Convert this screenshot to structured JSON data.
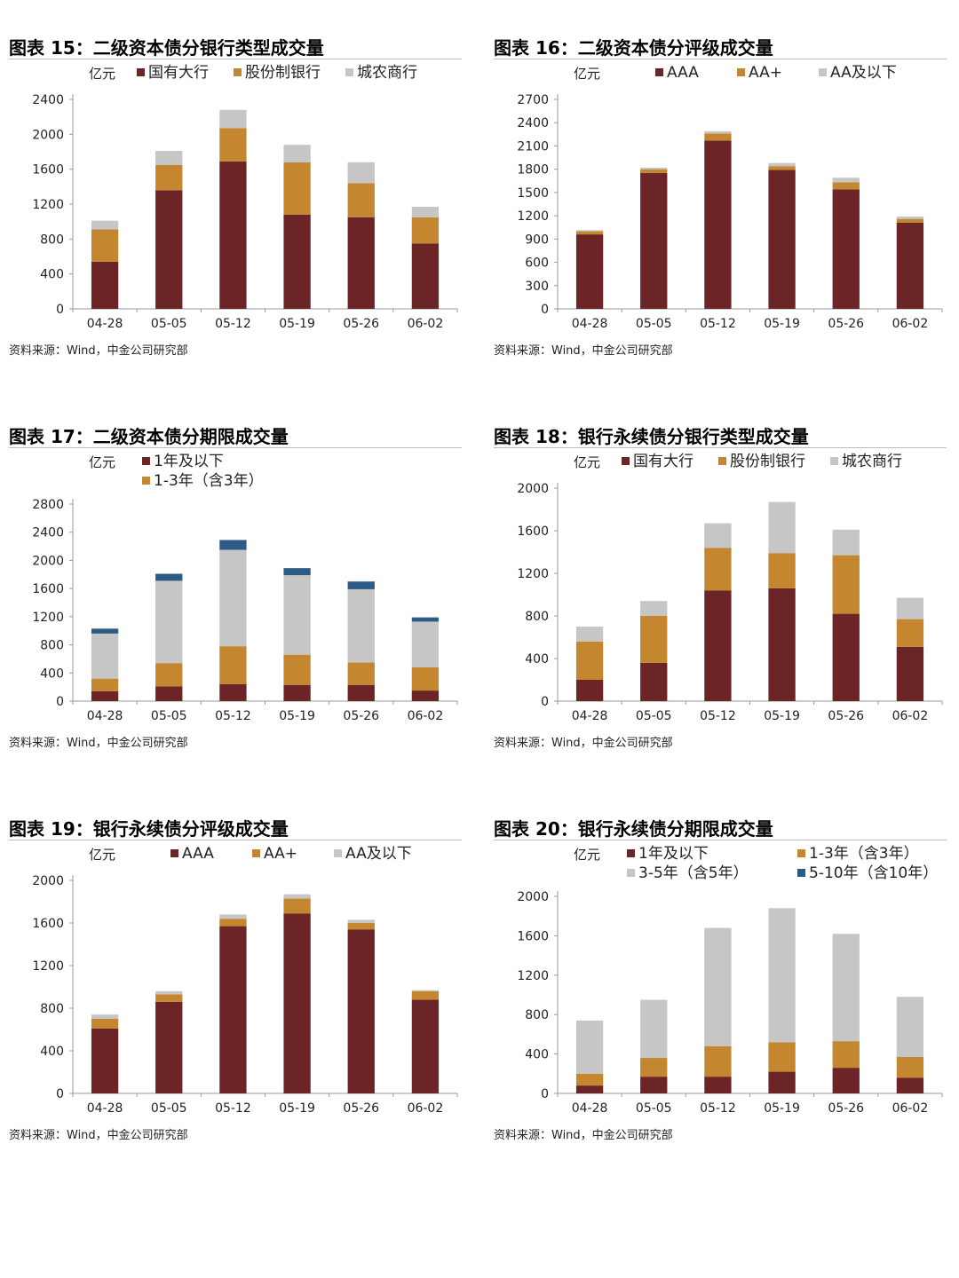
{
  "colors": {
    "dark_red": "#6b2526",
    "orange": "#c4862f",
    "gray": "#c6c6c6",
    "blue": "#2e5a86"
  },
  "source_text": "资料来源：Wind，中金公司研究部",
  "charts": [
    {
      "id": "p15",
      "title": "图表 15：二级资本债分银行类型成交量",
      "unit": "亿元",
      "legend_rows": [
        [
          "国有大行",
          "股份制银行",
          "城农商行"
        ]
      ],
      "chart_data": {
        "type": "bar",
        "stacked": true,
        "categories": [
          "04-28",
          "05-05",
          "05-12",
          "05-19",
          "05-26",
          "06-02"
        ],
        "ylim": [
          0,
          2400
        ],
        "yticks": [
          0,
          400,
          800,
          1200,
          1600,
          2000,
          2400
        ],
        "series": [
          {
            "name": "国有大行",
            "color": "#6b2526",
            "values": [
              540,
              1360,
              1690,
              1080,
              1050,
              750
            ]
          },
          {
            "name": "股份制银行",
            "color": "#c4862f",
            "values": [
              370,
              290,
              380,
              600,
              390,
              300
            ]
          },
          {
            "name": "城农商行",
            "color": "#c6c6c6",
            "values": [
              100,
              160,
              210,
              200,
              240,
              120
            ]
          }
        ]
      }
    },
    {
      "id": "p16",
      "title": "图表 16：二级资本债分评级成交量",
      "unit": "亿元",
      "legend_rows": [
        [
          "AAA",
          "AA+",
          "AA及以下"
        ]
      ],
      "chart_data": {
        "type": "bar",
        "stacked": true,
        "categories": [
          "04-28",
          "05-05",
          "05-12",
          "05-19",
          "05-26",
          "06-02"
        ],
        "ylim": [
          0,
          2700
        ],
        "yticks": [
          0,
          300,
          600,
          900,
          1200,
          1500,
          1800,
          2100,
          2400,
          2700
        ],
        "series": [
          {
            "name": "AAA",
            "color": "#6b2526",
            "values": [
              960,
              1750,
              2170,
              1790,
              1540,
              1110
            ]
          },
          {
            "name": "AA+",
            "color": "#c4862f",
            "values": [
              40,
              50,
              90,
              50,
              90,
              50
            ]
          },
          {
            "name": "AA及以下",
            "color": "#c6c6c6",
            "values": [
              15,
              20,
              30,
              40,
              60,
              30
            ]
          }
        ]
      }
    },
    {
      "id": "p17",
      "title": "图表 17：二级资本债分期限成交量",
      "unit": "亿元",
      "legend_rows": [
        [
          "1年及以下"
        ],
        [
          "1-3年（含3年）"
        ]
      ],
      "chart_data": {
        "type": "bar",
        "stacked": true,
        "categories": [
          "04-28",
          "05-05",
          "05-12",
          "05-19",
          "05-26",
          "06-02"
        ],
        "ylim": [
          0,
          2800
        ],
        "yticks": [
          0,
          400,
          800,
          1200,
          1600,
          2000,
          2400,
          2800
        ],
        "series": [
          {
            "name": "1年及以下",
            "color": "#6b2526",
            "values": [
              140,
              210,
              240,
              230,
              230,
              150
            ]
          },
          {
            "name": "1-3年（含3年）",
            "color": "#c4862f",
            "values": [
              180,
              330,
              540,
              430,
              320,
              330
            ]
          },
          {
            "color": "#c6c6c6",
            "values": [
              640,
              1170,
              1370,
              1130,
              1040,
              650
            ]
          },
          {
            "color": "#2e5a86",
            "values": [
              70,
              100,
              140,
              100,
              110,
              60
            ]
          }
        ]
      }
    },
    {
      "id": "p18",
      "title": "图表 18：银行永续债分银行类型成交量",
      "unit": "亿元",
      "legend_rows": [
        [
          "国有大行",
          "股份制银行",
          "城农商行"
        ]
      ],
      "chart_data": {
        "type": "bar",
        "stacked": true,
        "categories": [
          "04-28",
          "05-05",
          "05-12",
          "05-19",
          "05-26",
          "06-02"
        ],
        "ylim": [
          0,
          2000
        ],
        "yticks": [
          0,
          400,
          800,
          1200,
          1600,
          2000
        ],
        "series": [
          {
            "name": "国有大行",
            "color": "#6b2526",
            "values": [
              200,
              360,
              1040,
              1060,
              820,
              510
            ]
          },
          {
            "name": "股份制银行",
            "color": "#c4862f",
            "values": [
              360,
              440,
              400,
              330,
              550,
              260
            ]
          },
          {
            "name": "城农商行",
            "color": "#c6c6c6",
            "values": [
              140,
              140,
              230,
              480,
              240,
              200
            ]
          }
        ]
      }
    },
    {
      "id": "p19",
      "title": "图表 19：银行永续债分评级成交量",
      "unit": "亿元",
      "legend_rows": [
        [
          "AAA",
          "AA+",
          "AA及以下"
        ]
      ],
      "chart_data": {
        "type": "bar",
        "stacked": true,
        "categories": [
          "04-28",
          "05-05",
          "05-12",
          "05-19",
          "05-26",
          "06-02"
        ],
        "ylim": [
          0,
          2000
        ],
        "yticks": [
          0,
          400,
          800,
          1200,
          1600,
          2000
        ],
        "series": [
          {
            "name": "AAA",
            "color": "#6b2526",
            "values": [
              610,
              860,
              1570,
              1690,
              1540,
              880
            ]
          },
          {
            "name": "AA+",
            "color": "#c4862f",
            "values": [
              90,
              70,
              70,
              140,
              60,
              80
            ]
          },
          {
            "name": "AA及以下",
            "color": "#c6c6c6",
            "values": [
              40,
              30,
              40,
              40,
              30,
              10
            ]
          }
        ]
      }
    },
    {
      "id": "p20",
      "title": "图表 20：银行永续债分期限成交量",
      "unit": "亿元",
      "legend_rows": [
        [
          "1年及以下",
          "1-3年（含3年）"
        ],
        [
          "3-5年（含5年）",
          "5-10年（含10年）"
        ]
      ],
      "chart_data": {
        "type": "bar",
        "stacked": true,
        "categories": [
          "04-28",
          "05-05",
          "05-12",
          "05-19",
          "05-26",
          "06-02"
        ],
        "ylim": [
          0,
          2000
        ],
        "yticks": [
          0,
          400,
          800,
          1200,
          1600,
          2000
        ],
        "series": [
          {
            "name": "1年及以下",
            "color": "#6b2526",
            "values": [
              80,
              170,
              170,
              220,
              260,
              160
            ]
          },
          {
            "name": "1-3年（含3年）",
            "color": "#c4862f",
            "values": [
              120,
              190,
              310,
              300,
              270,
              210
            ]
          },
          {
            "name": "3-5年（含5年）",
            "color": "#c6c6c6",
            "values": [
              540,
              590,
              1200,
              1360,
              1090,
              610
            ]
          },
          {
            "name": "5-10年（含10年）",
            "color": "#2e5a86",
            "values": [
              0,
              0,
              0,
              0,
              0,
              0
            ]
          }
        ]
      }
    }
  ]
}
